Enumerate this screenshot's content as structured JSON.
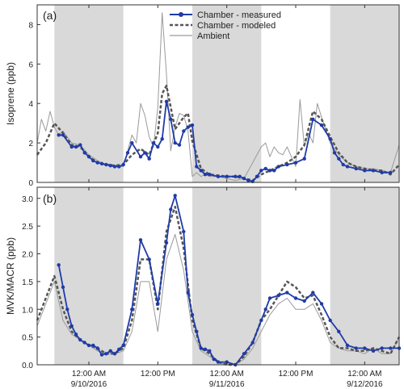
{
  "chart_data": [
    {
      "type": "line",
      "panel_label": "(a)",
      "ylabel": "Isoprene (ppb)",
      "ylim": [
        0,
        9
      ],
      "yticks": [
        0,
        2,
        4,
        6,
        8
      ],
      "legend": {
        "placement": "top-center",
        "entries": [
          "Chamber - measured",
          "Chamber - modeled",
          "Ambient"
        ]
      },
      "series": [
        {
          "name": "Chamber - measured",
          "color": "#1f3ba8",
          "style": "solid-markers",
          "x": [
            2.5,
            3,
            4,
            4.5,
            5,
            5.5,
            6,
            6.5,
            7,
            7.5,
            8,
            8.5,
            9,
            9.5,
            10,
            10.5,
            11,
            12,
            12.5,
            13,
            13.5,
            14,
            14.5,
            15,
            15.5,
            16,
            16.5,
            17,
            17.5,
            18,
            18.5,
            19,
            19.5,
            20,
            21,
            22,
            23,
            23.5,
            24,
            24.5,
            25,
            25.5,
            26,
            26.5,
            27,
            27.5,
            28,
            29,
            30,
            31,
            32,
            33,
            34,
            34.5,
            35,
            35.5,
            36,
            37,
            38,
            39,
            40,
            41
          ],
          "y": [
            2.4,
            2.4,
            1.8,
            1.8,
            1.9,
            1.5,
            1.3,
            1.1,
            1.0,
            0.95,
            0.9,
            0.85,
            0.8,
            0.8,
            0.9,
            1.5,
            2.0,
            1.3,
            1.5,
            1.2,
            2.0,
            1.8,
            2.2,
            4.1,
            3.2,
            2.0,
            1.9,
            2.6,
            2.8,
            2.9,
            0.8,
            0.6,
            0.4,
            0.4,
            0.3,
            0.3,
            0.3,
            0.3,
            0.2,
            0.1,
            0.05,
            0.3,
            0.6,
            0.7,
            0.6,
            0.6,
            0.8,
            0.9,
            1.0,
            1.2,
            3.2,
            2.9,
            2.2,
            1.5,
            1.2,
            0.9,
            0.8,
            0.7,
            0.6,
            0.6,
            0.5,
            0.5
          ]
        },
        {
          "name": "Chamber - modeled",
          "color": "#555555",
          "style": "dashed",
          "x": [
            0,
            1,
            2,
            3,
            4,
            5,
            6,
            7,
            8,
            9,
            10,
            11,
            12,
            13,
            14,
            14.5,
            15,
            16,
            17,
            17.5,
            18,
            19,
            20,
            21,
            22,
            23,
            24,
            25,
            26,
            27,
            28,
            29,
            30,
            31,
            32,
            33,
            34,
            35,
            36,
            37,
            38,
            39,
            40,
            41,
            42
          ],
          "y": [
            1.4,
            2.0,
            3.0,
            2.5,
            1.9,
            1.8,
            1.3,
            1.0,
            0.9,
            0.85,
            0.9,
            1.4,
            1.7,
            1.4,
            2.5,
            4.5,
            4.9,
            2.7,
            3.3,
            3.5,
            2.1,
            0.7,
            0.4,
            0.35,
            0.3,
            0.3,
            0.2,
            0.1,
            0.4,
            0.6,
            0.8,
            1.0,
            1.3,
            1.9,
            3.6,
            3.2,
            2.3,
            1.5,
            1.0,
            0.8,
            0.7,
            0.6,
            0.6,
            0.4,
            0.9
          ]
        },
        {
          "name": "Ambient",
          "color": "#9a9a9a",
          "style": "solid-thin",
          "x": [
            0,
            0.5,
            1,
            1.5,
            2,
            2.5,
            3,
            3.5,
            4,
            5,
            6,
            7,
            8,
            9,
            10,
            10.5,
            11,
            11.5,
            12,
            12.5,
            13,
            13.5,
            14,
            14.5,
            15,
            15.5,
            16,
            16.5,
            17,
            17.5,
            18,
            18.5,
            19,
            19.5,
            20,
            21,
            22,
            23,
            24,
            25,
            26,
            26.5,
            27,
            27.5,
            28,
            28.5,
            29,
            30,
            30.5,
            31,
            31.5,
            32,
            32.5,
            33,
            34,
            35,
            36,
            37,
            38,
            39,
            40,
            41,
            42
          ],
          "y": [
            2.0,
            3.2,
            2.6,
            3.6,
            2.8,
            2.4,
            2.6,
            2.3,
            2.0,
            1.9,
            1.4,
            1.1,
            0.9,
            0.8,
            0.8,
            1.6,
            2.4,
            2.0,
            4.0,
            3.4,
            2.3,
            1.8,
            3.8,
            8.6,
            5.5,
            1.6,
            2.8,
            3.5,
            3.4,
            2.6,
            0.3,
            0.5,
            0.3,
            0.4,
            0.3,
            0.3,
            0.2,
            0.1,
            0.2,
            1.0,
            1.8,
            2.0,
            1.3,
            1.8,
            1.5,
            1.4,
            1.8,
            0.8,
            4.2,
            1.8,
            2.5,
            2.0,
            4.0,
            3.3,
            2.0,
            1.4,
            1.0,
            0.8,
            0.7,
            0.7,
            0.6,
            0.5,
            1.9
          ]
        }
      ]
    },
    {
      "type": "line",
      "panel_label": "(b)",
      "ylabel": "MVK/MACR (ppb)",
      "ylim": [
        0,
        3.2
      ],
      "yticks": [
        0.0,
        0.5,
        1.0,
        1.5,
        2.0,
        2.5,
        3.0
      ],
      "xticks": [
        {
          "x": 6,
          "line1": "12:00 AM",
          "line2": "9/10/2016"
        },
        {
          "x": 14,
          "line1": "12:00 PM",
          "line2": ""
        },
        {
          "x": 22,
          "line1": "12:00 AM",
          "line2": "9/11/2016"
        },
        {
          "x": 30,
          "line1": "12:00 PM",
          "line2": ""
        },
        {
          "x": 38,
          "line1": "12:00 AM",
          "line2": "9/12/2016"
        }
      ],
      "series": [
        {
          "name": "Chamber - measured",
          "color": "#1f3ba8",
          "style": "solid-markers",
          "x": [
            2.5,
            3,
            3.5,
            4,
            4.5,
            5,
            5.5,
            6,
            6.5,
            7,
            7.5,
            8,
            8.5,
            9,
            9.5,
            10,
            11,
            12,
            13,
            14,
            15,
            15.5,
            16,
            17,
            17.5,
            18,
            18.5,
            19,
            19.5,
            20,
            20.5,
            21,
            22,
            23,
            24,
            25,
            26,
            26.5,
            27,
            28,
            29,
            30,
            31,
            32,
            33,
            34,
            35,
            36,
            37,
            38,
            39,
            40,
            41,
            42
          ],
          "y": [
            1.8,
            1.4,
            1.0,
            0.7,
            0.55,
            0.45,
            0.4,
            0.35,
            0.35,
            0.3,
            0.18,
            0.2,
            0.25,
            0.2,
            0.28,
            0.35,
            1.0,
            2.25,
            1.9,
            1.1,
            2.2,
            2.8,
            3.05,
            2.4,
            1.3,
            0.9,
            0.6,
            0.3,
            0.28,
            0.25,
            0.1,
            0.05,
            0.05,
            0.0,
            0.2,
            0.4,
            0.8,
            1.0,
            1.2,
            1.25,
            1.3,
            1.2,
            1.15,
            1.3,
            1.1,
            0.8,
            0.6,
            0.35,
            0.3,
            0.3,
            0.25,
            0.3,
            0.3,
            0.3
          ]
        },
        {
          "name": "Chamber - modeled",
          "color": "#555555",
          "style": "dashed",
          "x": [
            0,
            1,
            2,
            3,
            4,
            5,
            6,
            7,
            8,
            9,
            10,
            11,
            12,
            13,
            14,
            15,
            16,
            17,
            18,
            19,
            20,
            21,
            22,
            23,
            24,
            25,
            26,
            27,
            28,
            29,
            30,
            31,
            32,
            33,
            34,
            35,
            36,
            37,
            38,
            39,
            40,
            41,
            42
          ],
          "y": [
            0.8,
            1.2,
            1.6,
            1.0,
            0.6,
            0.45,
            0.35,
            0.3,
            0.2,
            0.2,
            0.3,
            0.8,
            1.9,
            1.9,
            1.0,
            2.4,
            2.85,
            2.1,
            0.8,
            0.3,
            0.2,
            0.05,
            0.0,
            0.0,
            0.15,
            0.4,
            0.8,
            1.0,
            1.25,
            1.5,
            1.4,
            1.2,
            1.25,
            0.9,
            0.5,
            0.3,
            0.3,
            0.25,
            0.25,
            0.3,
            0.25,
            0.2,
            0.5
          ]
        },
        {
          "name": "Ambient",
          "color": "#9a9a9a",
          "style": "solid-thin",
          "x": [
            0,
            1,
            2,
            3,
            4,
            5,
            6,
            7,
            8,
            9,
            10,
            11,
            12,
            13,
            14,
            15,
            16,
            17,
            18,
            19,
            20,
            21,
            22,
            23,
            24,
            25,
            26,
            27,
            28,
            29,
            30,
            31,
            32,
            33,
            34,
            35,
            36,
            37,
            38,
            39,
            40,
            41,
            42
          ],
          "y": [
            0.7,
            1.1,
            1.5,
            0.8,
            0.55,
            0.45,
            0.35,
            0.25,
            0.2,
            0.2,
            0.25,
            0.6,
            1.5,
            1.5,
            0.6,
            1.9,
            2.35,
            1.7,
            0.6,
            0.25,
            0.15,
            0.05,
            0.0,
            0.0,
            0.1,
            0.3,
            0.6,
            0.9,
            1.1,
            1.2,
            1.0,
            1.0,
            1.1,
            0.8,
            0.4,
            0.3,
            0.25,
            0.25,
            0.2,
            0.3,
            0.2,
            0.2,
            0.5
          ]
        }
      ]
    }
  ],
  "x_axis": {
    "range": [
      0,
      42
    ],
    "shaded_night_intervals": [
      [
        2,
        10
      ],
      [
        18,
        26
      ],
      [
        34,
        42
      ]
    ]
  }
}
